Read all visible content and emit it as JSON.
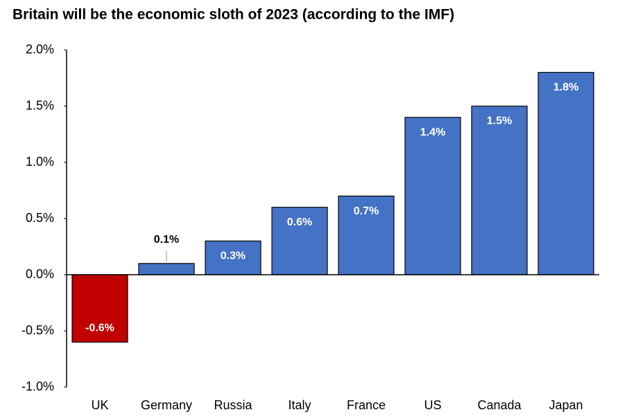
{
  "chart_data": {
    "type": "bar",
    "title": "Britain will be the economic sloth of 2023 (according to the IMF)",
    "categories": [
      "UK",
      "Germany",
      "Russia",
      "Italy",
      "France",
      "US",
      "Canada",
      "Japan"
    ],
    "values": [
      -0.6,
      0.1,
      0.3,
      0.6,
      0.7,
      1.4,
      1.5,
      1.8
    ],
    "value_labels": [
      "-0.6%",
      "0.1%",
      "0.3%",
      "0.6%",
      "0.7%",
      "1.4%",
      "1.5%",
      "1.8%"
    ],
    "colors": [
      "#c00000",
      "#4472c4",
      "#4472c4",
      "#4472c4",
      "#4472c4",
      "#4472c4",
      "#4472c4",
      "#4472c4"
    ],
    "ylim": [
      -1,
      2
    ],
    "yticks": [
      {
        "value": -1,
        "label": "-1.0%"
      },
      {
        "value": -0.5,
        "label": "-0.5%"
      },
      {
        "value": 0,
        "label": "0.0%"
      },
      {
        "value": 0.5,
        "label": "0.5%"
      },
      {
        "value": 1,
        "label": "1.0%"
      },
      {
        "value": 1.5,
        "label": "1.5%"
      },
      {
        "value": 2,
        "label": "2.0%"
      }
    ],
    "grid": false
  }
}
